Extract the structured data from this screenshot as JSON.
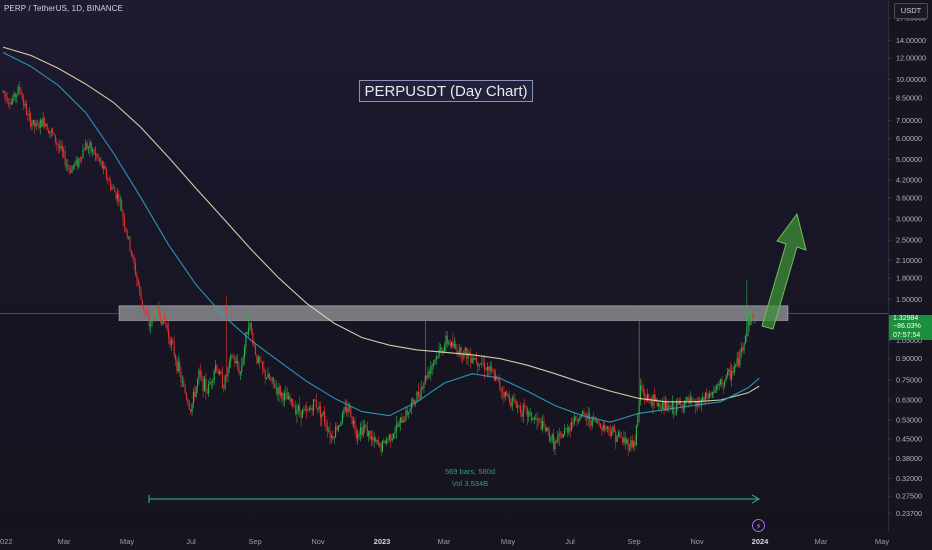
{
  "header": {
    "symbol_line": "PERP / TetherUS, 1D, BINANCE",
    "currency": "USDT"
  },
  "annotation": {
    "title": "PERPUSDT (Day Chart)",
    "range_bars": "569 bars, 580d",
    "range_volume": "Vol 3.534B"
  },
  "price_label": {
    "price": "1.32984",
    "change": "−86.03%",
    "countdown": "07:57:54"
  },
  "colors": {
    "up": "#26a69a",
    "up_candle": "#2db34a",
    "down": "#e2312f",
    "ema_long": "#e8e0b0",
    "ema_short": "#2aa3c8",
    "resistance_band": "#c8c8c8",
    "arrow": "#3f8f3a",
    "price_line": "#26a69a"
  },
  "chart_data": {
    "type": "candlestick",
    "scale": "log",
    "ylim": [
      0.22,
      18.5
    ],
    "y_ticks": [
      "17.00000",
      "14.00000",
      "12.00000",
      "10.00000",
      "8.50000",
      "7.00000",
      "6.00000",
      "5.00000",
      "4.20000",
      "3.60000",
      "3.00000",
      "2.50000",
      "2.10000",
      "1.80000",
      "1.50000",
      "1.05000",
      "0.90000",
      "0.75000",
      "0.63000",
      "0.53000",
      "0.45000",
      "0.38000",
      "0.32000",
      "0.27500",
      "0.23700"
    ],
    "x_ticks": [
      "022",
      "Mar",
      "May",
      "Jul",
      "Sep",
      "Nov",
      "2023",
      "Mar",
      "May",
      "Jul",
      "Sep",
      "Nov",
      "2024",
      "Mar",
      "May"
    ],
    "last_price": 1.32984,
    "resistance_zone": [
      1.25,
      1.42
    ],
    "range_measure": {
      "bars": 569,
      "days": 580,
      "volume": "3.534B"
    },
    "price_path": [
      [
        0,
        9.0
      ],
      [
        6,
        8.2
      ],
      [
        12,
        9.3
      ],
      [
        18,
        7.2
      ],
      [
        24,
        6.6
      ],
      [
        30,
        7.0
      ],
      [
        36,
        6.2
      ],
      [
        42,
        5.4
      ],
      [
        48,
        4.6
      ],
      [
        54,
        4.9
      ],
      [
        60,
        5.7
      ],
      [
        66,
        5.3
      ],
      [
        72,
        4.7
      ],
      [
        78,
        4.0
      ],
      [
        84,
        3.6
      ],
      [
        90,
        2.6
      ],
      [
        96,
        1.9
      ],
      [
        100,
        1.5
      ],
      [
        106,
        1.2
      ],
      [
        112,
        1.35
      ],
      [
        118,
        1.2
      ],
      [
        124,
        0.95
      ],
      [
        130,
        0.72
      ],
      [
        136,
        0.58
      ],
      [
        142,
        0.78
      ],
      [
        148,
        0.68
      ],
      [
        154,
        0.85
      ],
      [
        160,
        0.72
      ],
      [
        166,
        0.92
      ],
      [
        172,
        0.8
      ],
      [
        178,
        1.25
      ],
      [
        184,
        0.9
      ],
      [
        190,
        0.78
      ],
      [
        196,
        0.72
      ],
      [
        202,
        0.66
      ],
      [
        208,
        0.62
      ],
      [
        214,
        0.58
      ],
      [
        220,
        0.56
      ],
      [
        226,
        0.62
      ],
      [
        232,
        0.55
      ],
      [
        238,
        0.46
      ],
      [
        244,
        0.52
      ],
      [
        250,
        0.6
      ],
      [
        256,
        0.48
      ],
      [
        262,
        0.5
      ],
      [
        268,
        0.44
      ],
      [
        274,
        0.42
      ],
      [
        280,
        0.46
      ],
      [
        286,
        0.5
      ],
      [
        292,
        0.56
      ],
      [
        298,
        0.62
      ],
      [
        304,
        0.72
      ],
      [
        310,
        0.85
      ],
      [
        316,
        0.95
      ],
      [
        322,
        1.05
      ],
      [
        328,
        0.98
      ],
      [
        334,
        0.95
      ],
      [
        340,
        0.92
      ],
      [
        346,
        0.88
      ],
      [
        352,
        0.82
      ],
      [
        358,
        0.74
      ],
      [
        364,
        0.66
      ],
      [
        370,
        0.62
      ],
      [
        376,
        0.58
      ],
      [
        382,
        0.55
      ],
      [
        388,
        0.52
      ],
      [
        394,
        0.48
      ],
      [
        400,
        0.43
      ],
      [
        406,
        0.47
      ],
      [
        412,
        0.52
      ],
      [
        418,
        0.55
      ],
      [
        424,
        0.54
      ],
      [
        430,
        0.52
      ],
      [
        436,
        0.5
      ],
      [
        442,
        0.48
      ],
      [
        448,
        0.45
      ],
      [
        454,
        0.43
      ],
      [
        458,
        0.44
      ],
      [
        462,
        0.7
      ],
      [
        466,
        0.64
      ],
      [
        472,
        0.62
      ],
      [
        478,
        0.6
      ],
      [
        484,
        0.58
      ],
      [
        490,
        0.6
      ],
      [
        496,
        0.62
      ],
      [
        502,
        0.6
      ],
      [
        508,
        0.63
      ],
      [
        514,
        0.67
      ],
      [
        520,
        0.72
      ],
      [
        526,
        0.78
      ],
      [
        532,
        0.86
      ],
      [
        536,
        1.0
      ],
      [
        540,
        1.25
      ],
      [
        545,
        1.33
      ]
    ],
    "ema_long": [
      [
        0,
        13.2
      ],
      [
        20,
        12.3
      ],
      [
        40,
        11.0
      ],
      [
        60,
        9.6
      ],
      [
        80,
        8.2
      ],
      [
        100,
        6.6
      ],
      [
        120,
        5.1
      ],
      [
        140,
        3.9
      ],
      [
        160,
        3.0
      ],
      [
        180,
        2.3
      ],
      [
        200,
        1.8
      ],
      [
        220,
        1.45
      ],
      [
        240,
        1.22
      ],
      [
        260,
        1.08
      ],
      [
        280,
        1.01
      ],
      [
        300,
        0.97
      ],
      [
        320,
        0.95
      ],
      [
        340,
        0.93
      ],
      [
        360,
        0.9
      ],
      [
        380,
        0.85
      ],
      [
        400,
        0.79
      ],
      [
        420,
        0.73
      ],
      [
        440,
        0.68
      ],
      [
        460,
        0.64
      ],
      [
        480,
        0.62
      ],
      [
        500,
        0.62
      ],
      [
        520,
        0.63
      ],
      [
        540,
        0.67
      ],
      [
        548,
        0.71
      ]
    ],
    "ema_short": [
      [
        0,
        12.6
      ],
      [
        20,
        11.2
      ],
      [
        40,
        9.5
      ],
      [
        60,
        7.5
      ],
      [
        80,
        5.3
      ],
      [
        100,
        3.6
      ],
      [
        120,
        2.4
      ],
      [
        140,
        1.7
      ],
      [
        160,
        1.3
      ],
      [
        180,
        1.05
      ],
      [
        200,
        0.88
      ],
      [
        220,
        0.74
      ],
      [
        240,
        0.64
      ],
      [
        260,
        0.57
      ],
      [
        280,
        0.55
      ],
      [
        300,
        0.62
      ],
      [
        320,
        0.73
      ],
      [
        340,
        0.79
      ],
      [
        360,
        0.76
      ],
      [
        380,
        0.68
      ],
      [
        400,
        0.6
      ],
      [
        420,
        0.55
      ],
      [
        440,
        0.52
      ],
      [
        460,
        0.56
      ],
      [
        480,
        0.58
      ],
      [
        500,
        0.6
      ],
      [
        520,
        0.62
      ],
      [
        540,
        0.7
      ],
      [
        548,
        0.76
      ]
    ]
  }
}
